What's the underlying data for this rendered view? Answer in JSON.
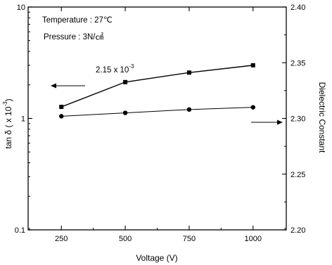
{
  "chart_data": {
    "type": "line",
    "x": [
      250,
      500,
      750,
      1000
    ],
    "xlabel": "Voltage (V)",
    "xlim": [
      120,
      1130
    ],
    "xticks": [
      "250",
      "500",
      "750",
      "1000"
    ],
    "y_left": {
      "label_main": "tan δ ( x 10",
      "label_exp": "-3",
      "label_close": ")",
      "scale": "log",
      "lim": [
        0.1,
        10
      ],
      "ticks": [
        {
          "value": 0.1,
          "label": "0.1"
        },
        {
          "value": 1,
          "label": "1"
        },
        {
          "value": 10,
          "label": "10"
        }
      ]
    },
    "y_right": {
      "label": "Dielectric Constant",
      "scale": "linear",
      "lim": [
        2.2,
        2.4
      ],
      "ticks": [
        "2.20",
        "2.25",
        "2.30",
        "2.35",
        "2.40"
      ]
    },
    "series": [
      {
        "axis": "left",
        "marker": "square",
        "values": [
          1.27,
          2.12,
          2.58,
          3.0
        ]
      },
      {
        "axis": "right",
        "marker": "circle",
        "values": [
          2.302,
          2.305,
          2.308,
          2.31
        ]
      }
    ],
    "annotations": {
      "temperature": "Temperature : 27℃",
      "pressure": "Pressure : 3N/㎠",
      "value_main": "2.15  x 10",
      "value_exp": "-3"
    },
    "grid": false
  }
}
